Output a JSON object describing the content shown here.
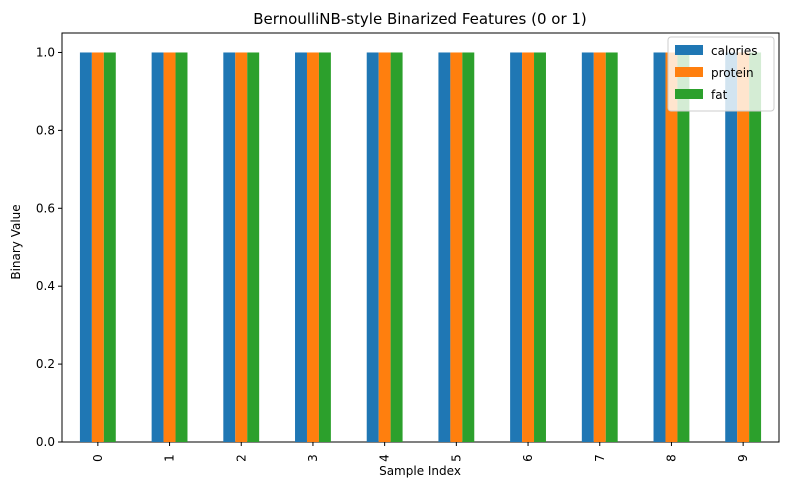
{
  "chart_data": {
    "type": "bar",
    "title": "BernoulliNB-style Binarized Features (0 or 1)",
    "xlabel": "Sample Index",
    "ylabel": "Binary Value",
    "categories": [
      "0",
      "1",
      "2",
      "3",
      "4",
      "5",
      "6",
      "7",
      "8",
      "9"
    ],
    "ylim": [
      0,
      1.05
    ],
    "yticks": [
      0.0,
      0.2,
      0.4,
      0.6,
      0.8,
      1.0
    ],
    "ytick_labels": [
      "0.0",
      "0.2",
      "0.4",
      "0.6",
      "0.8",
      "1.0"
    ],
    "grid": false,
    "legend_position": "top-right",
    "series": [
      {
        "name": "calories",
        "color": "#1f77b4",
        "values": [
          1,
          1,
          1,
          1,
          1,
          1,
          1,
          1,
          1,
          1
        ]
      },
      {
        "name": "protein",
        "color": "#ff7f0e",
        "values": [
          1,
          1,
          1,
          1,
          1,
          1,
          1,
          1,
          1,
          1
        ]
      },
      {
        "name": "fat",
        "color": "#2ca02c",
        "values": [
          1,
          1,
          1,
          1,
          1,
          1,
          1,
          1,
          1,
          1
        ]
      }
    ]
  }
}
